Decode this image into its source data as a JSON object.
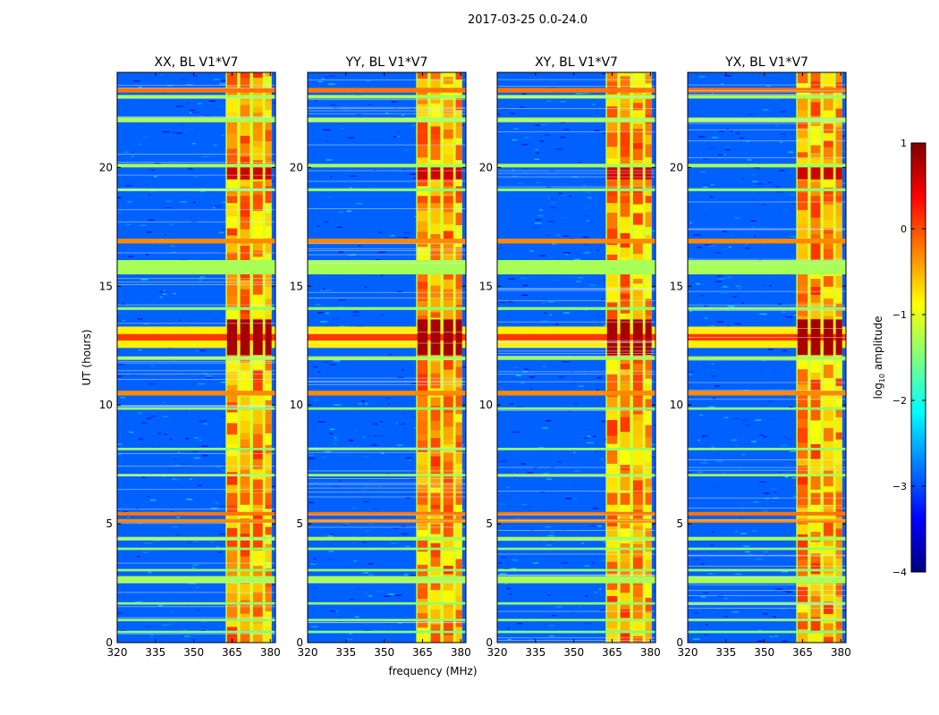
{
  "figure": {
    "suptitle": "2017-03-25 0.0-24.0",
    "xlabel": "frequency (MHz)",
    "ylabel": "UT (hours)"
  },
  "colorbar": {
    "label": "log",
    "label_sub": "10",
    "label_rest": " amplitude",
    "range": [
      -4,
      1
    ],
    "ticks": [
      -4,
      -3,
      -2,
      -1,
      0,
      1
    ],
    "tick_labels": [
      "−4",
      "−3",
      "−2",
      "−1",
      "0",
      "1"
    ],
    "colormap": "jet",
    "colors": [
      "#00007f",
      "#0000ff",
      "#007fff",
      "#00ffff",
      "#7fff7f",
      "#ffff00",
      "#ff7f00",
      "#ff0000",
      "#7f0000"
    ]
  },
  "chart_data": {
    "type": "heatmap",
    "panels": [
      {
        "title": "XX, BL V1*V7",
        "ylabel": "UT (hours)",
        "xlabel": ""
      },
      {
        "title": "YY, BL V1*V7",
        "ylabel": "",
        "xlabel": "frequency (MHz)"
      },
      {
        "title": "XY, BL V1*V7",
        "ylabel": "",
        "xlabel": ""
      },
      {
        "title": "YX, BL V1*V7",
        "ylabel": "",
        "xlabel": ""
      }
    ],
    "xlim": [
      320,
      382
    ],
    "ylim": [
      0,
      24
    ],
    "xticks": [
      320,
      335,
      350,
      365,
      380
    ],
    "yticks": [
      0,
      5,
      10,
      15,
      20
    ],
    "value_units": "log10 amplitude",
    "background_level": -2.9,
    "rfi_band_MHz": [
      362.5,
      380.5
    ],
    "rfi_channels_MHz": [
      {
        "f0": 363.0,
        "f1": 367.0,
        "level": -0.5
      },
      {
        "f0": 368.2,
        "f1": 372.0,
        "level": -0.5
      },
      {
        "f0": 373.2,
        "f1": 377.0,
        "level": -0.5
      },
      {
        "f0": 378.0,
        "f1": 380.5,
        "level": -0.6
      }
    ],
    "time_features_hours": [
      {
        "t0": 23.15,
        "t1": 23.35,
        "level": -0.2,
        "kind": "broadband"
      },
      {
        "t0": 22.9,
        "t1": 23.05,
        "level": -1.3,
        "kind": "broadband"
      },
      {
        "t0": 21.9,
        "t1": 22.1,
        "level": -1.3,
        "kind": "broadband"
      },
      {
        "t0": 20.0,
        "t1": 20.15,
        "level": -1.3,
        "kind": "broadband"
      },
      {
        "t0": 19.0,
        "t1": 19.12,
        "level": -1.4,
        "kind": "broadband"
      },
      {
        "t0": 16.8,
        "t1": 17.0,
        "level": -0.3,
        "kind": "broadband"
      },
      {
        "t0": 15.5,
        "t1": 16.1,
        "level": -1.3,
        "kind": "broadband"
      },
      {
        "t0": 14.0,
        "t1": 14.12,
        "level": -1.4,
        "kind": "broadband"
      },
      {
        "t0": 12.4,
        "t1": 13.3,
        "level": 0.3,
        "kind": "strong event"
      },
      {
        "t0": 11.9,
        "t1": 12.05,
        "level": -1.3,
        "kind": "broadband"
      },
      {
        "t0": 10.4,
        "t1": 10.6,
        "level": -0.3,
        "kind": "broadband"
      },
      {
        "t0": 9.8,
        "t1": 9.9,
        "level": -1.4,
        "kind": "broadband"
      },
      {
        "t0": 8.1,
        "t1": 8.2,
        "level": -1.4,
        "kind": "broadband"
      },
      {
        "t0": 7.0,
        "t1": 7.1,
        "level": -1.3,
        "kind": "broadband"
      },
      {
        "t0": 5.35,
        "t1": 5.5,
        "level": -0.2,
        "kind": "broadband"
      },
      {
        "t0": 5.05,
        "t1": 5.2,
        "level": -0.3,
        "kind": "broadband"
      },
      {
        "t0": 4.3,
        "t1": 4.45,
        "level": -1.3,
        "kind": "broadband"
      },
      {
        "t0": 3.9,
        "t1": 4.0,
        "level": -1.4,
        "kind": "broadband"
      },
      {
        "t0": 3.0,
        "t1": 3.1,
        "level": -1.4,
        "kind": "broadband"
      },
      {
        "t0": 2.5,
        "t1": 2.8,
        "level": -1.3,
        "kind": "broadband"
      },
      {
        "t0": 1.6,
        "t1": 1.7,
        "level": -1.4,
        "kind": "broadband"
      },
      {
        "t0": 0.9,
        "t1": 1.0,
        "level": -1.4,
        "kind": "broadband"
      },
      {
        "t0": 0.4,
        "t1": 0.5,
        "level": -1.5,
        "kind": "broadband"
      }
    ],
    "strong_rfi_periods_hours": [
      {
        "t0": 19.5,
        "t1": 20.1,
        "level": 0.6
      },
      {
        "t0": 18.5,
        "t1": 18.8,
        "level": 0.0
      },
      {
        "t0": 5.8,
        "t1": 6.3,
        "level": -0.1
      }
    ]
  }
}
